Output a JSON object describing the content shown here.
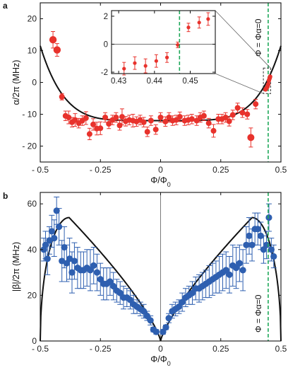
{
  "chart_data": [
    {
      "panel": "a",
      "type": "scatter",
      "xlabel": "Φ/Φ0",
      "ylabel": "α/2π (MHz)",
      "xlim": [
        -0.5,
        0.5
      ],
      "ylim": [
        -25,
        25
      ],
      "xticks": [
        -0.5,
        -0.25,
        0,
        0.25,
        0.5
      ],
      "xtick_labels": [
        "- 0.5",
        "- 0.25",
        "0",
        "0.25",
        "0.5"
      ],
      "yticks": [
        -20,
        -10,
        0,
        10,
        20
      ],
      "ytick_labels": [
        "- 20",
        "- 10",
        "0",
        "10",
        "20"
      ],
      "vline_x": 0.447,
      "vline_label": "Φ = Φα=0",
      "marker_color": "#e8322c",
      "series": [
        {
          "values": [
            {
              "x": -0.447,
              "y": 13.4,
              "e": 2.6
            },
            {
              "x": -0.43,
              "y": 10.2,
              "e": 2.0
            },
            {
              "x": -0.41,
              "y": -4.5,
              "e": 1.0
            },
            {
              "x": -0.395,
              "y": -10.5,
              "e": 1.5
            },
            {
              "x": -0.382,
              "y": -11.0,
              "e": 2.0
            },
            {
              "x": -0.368,
              "y": -12.5,
              "e": 1.5
            },
            {
              "x": -0.355,
              "y": -11.8,
              "e": 2.0
            },
            {
              "x": -0.34,
              "y": -12.8,
              "e": 1.5
            },
            {
              "x": -0.325,
              "y": -12.0,
              "e": 1.5
            },
            {
              "x": -0.31,
              "y": -11.2,
              "e": 2.0
            },
            {
              "x": -0.295,
              "y": -16.2,
              "e": 1.8
            },
            {
              "x": -0.28,
              "y": -13.2,
              "e": 1.8
            },
            {
              "x": -0.265,
              "y": -14.5,
              "e": 2.0
            },
            {
              "x": -0.25,
              "y": -14.4,
              "e": 2.0
            },
            {
              "x": -0.23,
              "y": -11.0,
              "e": 1.5
            },
            {
              "x": -0.215,
              "y": -13.0,
              "e": 1.5
            },
            {
              "x": -0.2,
              "y": -11.8,
              "e": 1.5
            },
            {
              "x": -0.185,
              "y": -11.0,
              "e": 1.5
            },
            {
              "x": -0.17,
              "y": -13.5,
              "e": 1.5
            },
            {
              "x": -0.16,
              "y": -10.8,
              "e": 2.5
            },
            {
              "x": -0.145,
              "y": -12.2,
              "e": 1.5
            },
            {
              "x": -0.13,
              "y": -11.8,
              "e": 1.5
            },
            {
              "x": -0.115,
              "y": -12.0,
              "e": 2.0
            },
            {
              "x": -0.1,
              "y": -12.3,
              "e": 1.5
            },
            {
              "x": -0.085,
              "y": -11.8,
              "e": 1.5
            },
            {
              "x": -0.07,
              "y": -12.5,
              "e": 1.5
            },
            {
              "x": -0.055,
              "y": -15.5,
              "e": 1.5
            },
            {
              "x": -0.04,
              "y": -12.0,
              "e": 1.5
            },
            {
              "x": -0.02,
              "y": -14.8,
              "e": 1.5
            },
            {
              "x": 0.0,
              "y": -11.0,
              "e": 1.5
            },
            {
              "x": 0.02,
              "y": -12.3,
              "e": 1.5
            },
            {
              "x": 0.035,
              "y": -11.0,
              "e": 1.5
            },
            {
              "x": 0.05,
              "y": -12.0,
              "e": 1.5
            },
            {
              "x": 0.065,
              "y": -11.8,
              "e": 1.5
            },
            {
              "x": 0.08,
              "y": -10.8,
              "e": 1.5
            },
            {
              "x": 0.1,
              "y": -12.0,
              "e": 1.5
            },
            {
              "x": 0.115,
              "y": -11.8,
              "e": 1.5
            },
            {
              "x": 0.13,
              "y": -11.5,
              "e": 1.5
            },
            {
              "x": 0.15,
              "y": -12.0,
              "e": 1.5
            },
            {
              "x": 0.165,
              "y": -11.0,
              "e": 1.5
            },
            {
              "x": 0.18,
              "y": -10.5,
              "e": 1.5
            },
            {
              "x": 0.2,
              "y": -12.8,
              "e": 1.5
            },
            {
              "x": 0.22,
              "y": -15.2,
              "e": 2.0
            },
            {
              "x": 0.24,
              "y": -11.5,
              "e": 1.5
            },
            {
              "x": 0.255,
              "y": -11.5,
              "e": 1.5
            },
            {
              "x": 0.27,
              "y": -11.0,
              "e": 1.5
            },
            {
              "x": 0.285,
              "y": -12.2,
              "e": 1.5
            },
            {
              "x": 0.3,
              "y": -10.2,
              "e": 1.5
            },
            {
              "x": 0.32,
              "y": -8.0,
              "e": 1.5
            },
            {
              "x": 0.34,
              "y": -9.5,
              "e": 1.5
            },
            {
              "x": 0.36,
              "y": -10.0,
              "e": 1.5
            },
            {
              "x": 0.375,
              "y": -17.3,
              "e": 3.0
            },
            {
              "x": 0.395,
              "y": -6.8,
              "e": 1.5
            }
          ]
        }
      ],
      "fit_curve": "black solid line"
    },
    {
      "panel": "a-inset",
      "type": "scatter",
      "xlim": [
        0.428,
        0.457
      ],
      "ylim": [
        -2.1,
        2.4
      ],
      "xticks": [
        0.43,
        0.44,
        0.45
      ],
      "xtick_labels": [
        "0.43",
        "0.44",
        "0.45"
      ],
      "yticks": [
        -2,
        0,
        2
      ],
      "ytick_labels": [
        "-2",
        "0",
        "2"
      ],
      "vline_x": 0.447,
      "series": [
        {
          "values": [
            {
              "x": 0.4315,
              "y": -1.75,
              "e": 0.45
            },
            {
              "x": 0.4345,
              "y": -1.35,
              "e": 0.45
            },
            {
              "x": 0.4375,
              "y": -1.55,
              "e": 0.5
            },
            {
              "x": 0.4405,
              "y": -1.2,
              "e": 0.45
            },
            {
              "x": 0.4435,
              "y": -0.95,
              "e": 0.35
            },
            {
              "x": 0.4465,
              "y": -0.05,
              "e": 0.2
            },
            {
              "x": 0.4495,
              "y": 1.2,
              "e": 0.3
            },
            {
              "x": 0.4525,
              "y": 1.55,
              "e": 0.4
            },
            {
              "x": 0.455,
              "y": 1.8,
              "e": 0.45
            }
          ]
        }
      ]
    },
    {
      "panel": "b",
      "type": "scatter",
      "xlabel": "Φ/Φ0",
      "ylabel": "|β|/2π (MHz)",
      "xlim": [
        -0.5,
        0.5
      ],
      "ylim": [
        0,
        65
      ],
      "xticks": [
        -0.5,
        -0.25,
        0,
        0.25,
        0.5
      ],
      "xtick_labels": [
        "- 0.5",
        "- 0.25",
        "0",
        "0.25",
        "0.5"
      ],
      "yticks": [
        0,
        20,
        40,
        60
      ],
      "ytick_labels": [
        "0",
        "20",
        "40",
        "60"
      ],
      "vline_x": 0.447,
      "vline_label": "Φ = Φα=0",
      "marker_color": "#2e5fb0",
      "series": [
        {
          "values": [
            {
              "x": -0.485,
              "y": 40,
              "e": 5
            },
            {
              "x": -0.478,
              "y": 42,
              "e": 6
            },
            {
              "x": -0.47,
              "y": 36,
              "e": 7
            },
            {
              "x": -0.462,
              "y": 44,
              "e": 6
            },
            {
              "x": -0.452,
              "y": 48,
              "e": 7
            },
            {
              "x": -0.442,
              "y": 45,
              "e": 8
            },
            {
              "x": -0.432,
              "y": 57,
              "e": 6
            },
            {
              "x": -0.422,
              "y": 50,
              "e": 8
            },
            {
              "x": -0.41,
              "y": 35,
              "e": 9
            },
            {
              "x": -0.4,
              "y": 41,
              "e": 9
            },
            {
              "x": -0.39,
              "y": 34,
              "e": 8
            },
            {
              "x": -0.378,
              "y": 36,
              "e": 9
            },
            {
              "x": -0.368,
              "y": 30,
              "e": 9
            },
            {
              "x": -0.358,
              "y": 35,
              "e": 8
            },
            {
              "x": -0.345,
              "y": 32,
              "e": 9
            },
            {
              "x": -0.332,
              "y": 31,
              "e": 8
            },
            {
              "x": -0.32,
              "y": 31,
              "e": 8
            },
            {
              "x": -0.306,
              "y": 32,
              "e": 8
            },
            {
              "x": -0.292,
              "y": 31,
              "e": 9
            },
            {
              "x": -0.278,
              "y": 33,
              "e": 8
            },
            {
              "x": -0.264,
              "y": 30,
              "e": 8
            },
            {
              "x": -0.25,
              "y": 27,
              "e": 7
            },
            {
              "x": -0.237,
              "y": 25,
              "e": 7
            },
            {
              "x": -0.224,
              "y": 25,
              "e": 7
            },
            {
              "x": -0.21,
              "y": 26,
              "e": 6
            },
            {
              "x": -0.196,
              "y": 24,
              "e": 6
            },
            {
              "x": -0.182,
              "y": 22,
              "e": 5
            },
            {
              "x": -0.168,
              "y": 21,
              "e": 5
            },
            {
              "x": -0.154,
              "y": 19,
              "e": 5
            },
            {
              "x": -0.14,
              "y": 19,
              "e": 4
            },
            {
              "x": -0.126,
              "y": 18,
              "e": 4
            },
            {
              "x": -0.112,
              "y": 16,
              "e": 4
            },
            {
              "x": -0.098,
              "y": 15,
              "e": 3
            },
            {
              "x": -0.084,
              "y": 14,
              "e": 3
            },
            {
              "x": -0.07,
              "y": 13,
              "e": 3
            },
            {
              "x": -0.056,
              "y": 11,
              "e": 2
            },
            {
              "x": -0.042,
              "y": 9,
              "e": 2
            },
            {
              "x": -0.03,
              "y": 5,
              "e": 1
            },
            {
              "x": -0.018,
              "y": 4,
              "e": 1
            },
            {
              "x": 0.01,
              "y": 4,
              "e": 1
            },
            {
              "x": 0.022,
              "y": 6,
              "e": 1
            },
            {
              "x": 0.034,
              "y": 10,
              "e": 2
            },
            {
              "x": 0.048,
              "y": 13,
              "e": 3
            },
            {
              "x": 0.062,
              "y": 14,
              "e": 3
            },
            {
              "x": 0.076,
              "y": 15,
              "e": 3
            },
            {
              "x": 0.09,
              "y": 17,
              "e": 4
            },
            {
              "x": 0.104,
              "y": 19,
              "e": 4
            },
            {
              "x": 0.118,
              "y": 20,
              "e": 4
            },
            {
              "x": 0.132,
              "y": 21,
              "e": 5
            },
            {
              "x": 0.146,
              "y": 23,
              "e": 5
            },
            {
              "x": 0.16,
              "y": 23,
              "e": 6
            },
            {
              "x": 0.174,
              "y": 24,
              "e": 6
            },
            {
              "x": 0.188,
              "y": 25,
              "e": 6
            },
            {
              "x": 0.202,
              "y": 26,
              "e": 7
            },
            {
              "x": 0.216,
              "y": 27,
              "e": 7
            },
            {
              "x": 0.23,
              "y": 28,
              "e": 7
            },
            {
              "x": 0.244,
              "y": 29,
              "e": 8
            },
            {
              "x": 0.258,
              "y": 30,
              "e": 8
            },
            {
              "x": 0.272,
              "y": 31,
              "e": 8
            },
            {
              "x": 0.286,
              "y": 29,
              "e": 8
            },
            {
              "x": 0.3,
              "y": 33,
              "e": 9
            },
            {
              "x": 0.314,
              "y": 32,
              "e": 9
            },
            {
              "x": 0.328,
              "y": 34,
              "e": 8
            },
            {
              "x": 0.342,
              "y": 31,
              "e": 9
            },
            {
              "x": 0.356,
              "y": 42,
              "e": 8
            },
            {
              "x": 0.368,
              "y": 46,
              "e": 8
            },
            {
              "x": 0.38,
              "y": 42,
              "e": 7
            },
            {
              "x": 0.392,
              "y": 49,
              "e": 7
            },
            {
              "x": 0.404,
              "y": 49,
              "e": 7
            },
            {
              "x": 0.416,
              "y": 46,
              "e": 6
            },
            {
              "x": 0.428,
              "y": 40,
              "e": 6
            },
            {
              "x": 0.44,
              "y": 42,
              "e": 6
            },
            {
              "x": 0.45,
              "y": 54,
              "e": 6
            },
            {
              "x": 0.46,
              "y": 40,
              "e": 5
            },
            {
              "x": 0.47,
              "y": 37,
              "e": 5
            }
          ]
        }
      ],
      "fit_curve": "black solid line"
    }
  ],
  "panels": {
    "a_label": "a",
    "b_label": "b"
  }
}
